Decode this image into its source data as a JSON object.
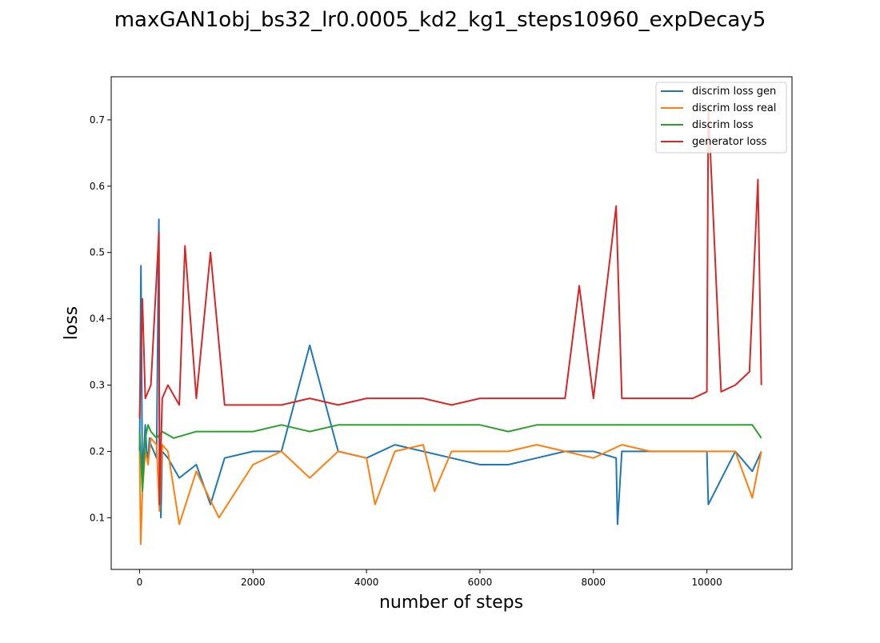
{
  "chart_data": {
    "type": "line",
    "title": "maxGAN1obj_bs32_lr0.0005_kd2_kg1_steps10960_expDecay5",
    "xlabel": "number of steps",
    "ylabel": "loss",
    "xlim": [
      -500,
      11500
    ],
    "ylim": [
      0.022,
      0.765
    ],
    "x_ticks": [
      0,
      2000,
      4000,
      6000,
      8000,
      10000
    ],
    "x_tick_labels": [
      "0",
      "2000",
      "4000",
      "6000",
      "8000",
      "10000"
    ],
    "y_ticks": [
      0.1,
      0.2,
      0.3,
      0.4,
      0.5,
      0.6,
      0.7
    ],
    "y_tick_labels": [
      "0.1",
      "0.2",
      "0.3",
      "0.4",
      "0.5",
      "0.6",
      "0.7"
    ],
    "grid": false,
    "legend_position": "top-right",
    "series": [
      {
        "name": "discrim loss gen",
        "color": "#1f77b4",
        "x": [
          0,
          25,
          50,
          75,
          100,
          125,
          150,
          175,
          200,
          250,
          300,
          340,
          350,
          375,
          400,
          500,
          700,
          1000,
          1250,
          1500,
          2000,
          2500,
          3000,
          3500,
          4000,
          4500,
          5000,
          5500,
          6000,
          6500,
          7000,
          7500,
          8000,
          8400,
          8425,
          8500,
          9000,
          9500,
          10000,
          10025,
          10500,
          10800,
          10960
        ],
        "y": [
          0.2,
          0.48,
          0.15,
          0.2,
          0.24,
          0.2,
          0.19,
          0.22,
          0.21,
          0.2,
          0.19,
          0.55,
          0.22,
          0.1,
          0.2,
          0.19,
          0.16,
          0.18,
          0.12,
          0.19,
          0.2,
          0.2,
          0.36,
          0.2,
          0.19,
          0.21,
          0.2,
          0.19,
          0.18,
          0.18,
          0.19,
          0.2,
          0.2,
          0.19,
          0.09,
          0.2,
          0.2,
          0.2,
          0.2,
          0.12,
          0.2,
          0.17,
          0.2
        ]
      },
      {
        "name": "discrim loss real",
        "color": "#ff7f0e",
        "x": [
          0,
          20,
          50,
          100,
          150,
          200,
          300,
          350,
          400,
          500,
          700,
          1000,
          1400,
          2000,
          2500,
          3000,
          3500,
          4000,
          4150,
          4500,
          5000,
          5200,
          5500,
          6000,
          6500,
          7000,
          7500,
          8000,
          8500,
          9000,
          9500,
          10000,
          10500,
          10800,
          10960
        ],
        "y": [
          0.2,
          0.06,
          0.14,
          0.2,
          0.18,
          0.22,
          0.21,
          0.11,
          0.21,
          0.2,
          0.09,
          0.17,
          0.1,
          0.18,
          0.2,
          0.16,
          0.2,
          0.19,
          0.12,
          0.2,
          0.21,
          0.14,
          0.2,
          0.2,
          0.2,
          0.21,
          0.2,
          0.19,
          0.21,
          0.2,
          0.2,
          0.2,
          0.2,
          0.13,
          0.2
        ]
      },
      {
        "name": "discrim loss",
        "color": "#2ca02c",
        "x": [
          0,
          50,
          100,
          150,
          200,
          300,
          400,
          600,
          1000,
          1500,
          2000,
          2500,
          3000,
          3500,
          4000,
          4500,
          5000,
          5500,
          6000,
          6500,
          7000,
          7500,
          8000,
          8500,
          9000,
          9500,
          10000,
          10500,
          10800,
          10960
        ],
        "y": [
          0.23,
          0.14,
          0.22,
          0.24,
          0.23,
          0.22,
          0.23,
          0.22,
          0.23,
          0.23,
          0.23,
          0.24,
          0.23,
          0.24,
          0.24,
          0.24,
          0.24,
          0.24,
          0.24,
          0.23,
          0.24,
          0.24,
          0.24,
          0.24,
          0.24,
          0.24,
          0.24,
          0.24,
          0.24,
          0.22
        ]
      },
      {
        "name": "generator loss",
        "color": "#d62728",
        "x": [
          0,
          50,
          100,
          200,
          340,
          350,
          400,
          500,
          700,
          800,
          1000,
          1250,
          1500,
          2000,
          2500,
          3000,
          3500,
          4000,
          4500,
          5000,
          5500,
          6000,
          6500,
          7000,
          7500,
          7750,
          8000,
          8400,
          8500,
          9000,
          9500,
          9750,
          10000,
          10025,
          10250,
          10500,
          10750,
          10900,
          10960
        ],
        "y": [
          0.25,
          0.43,
          0.28,
          0.3,
          0.53,
          0.12,
          0.28,
          0.3,
          0.27,
          0.51,
          0.28,
          0.5,
          0.27,
          0.27,
          0.27,
          0.28,
          0.27,
          0.28,
          0.28,
          0.28,
          0.27,
          0.28,
          0.28,
          0.28,
          0.28,
          0.45,
          0.28,
          0.57,
          0.28,
          0.28,
          0.28,
          0.28,
          0.29,
          0.72,
          0.29,
          0.3,
          0.32,
          0.61,
          0.3
        ]
      }
    ]
  }
}
